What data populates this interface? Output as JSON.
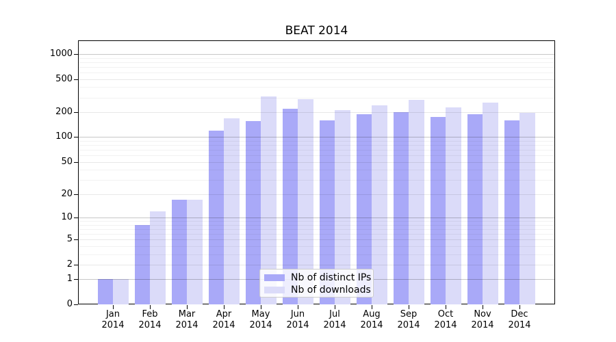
{
  "title": "BEAT 2014",
  "chart_data": {
    "type": "bar",
    "title": "BEAT 2014",
    "categories": [
      "Jan 2014",
      "Feb 2014",
      "Mar 2014",
      "Apr 2014",
      "May 2014",
      "Jun 2014",
      "Jul 2014",
      "Aug 2014",
      "Sep 2014",
      "Oct 2014",
      "Nov 2014",
      "Dec 2014"
    ],
    "series": [
      {
        "name": "Nb of distinct IPs",
        "color": "#a9a9f8",
        "values": [
          1,
          8,
          17,
          120,
          155,
          220,
          160,
          190,
          200,
          175,
          190,
          158
        ]
      },
      {
        "name": "Nb of downloads",
        "color": "#dbdbf9",
        "values": [
          1,
          12,
          17,
          170,
          310,
          285,
          210,
          240,
          280,
          230,
          260,
          195
        ]
      }
    ],
    "yscale": "log1p",
    "yticks": [
      0,
      1,
      2,
      5,
      10,
      20,
      50,
      100,
      200,
      500,
      1000
    ],
    "ylim": [
      0,
      1450
    ],
    "xlabel": "",
    "ylabel": "",
    "grid": "on",
    "legend_position": "lower-center-inside"
  },
  "grid_levels": {
    "major": [
      1,
      10,
      100,
      1000
    ],
    "mid": [
      2,
      5,
      20,
      50,
      200,
      500
    ],
    "minor": [
      3,
      4,
      6,
      7,
      8,
      9,
      30,
      40,
      60,
      70,
      80,
      90,
      300,
      400,
      600,
      700,
      800,
      900
    ]
  },
  "colors": {
    "bar_ips": "#a9a9f8",
    "bar_downloads": "#dbdbf9",
    "grid_major": "rgba(0,0,0,0.22)",
    "grid_mid": "rgba(0,0,0,0.09)",
    "grid_minor": "rgba(0,0,0,0.05)",
    "axis": "#000000",
    "background": "#ffffff"
  }
}
